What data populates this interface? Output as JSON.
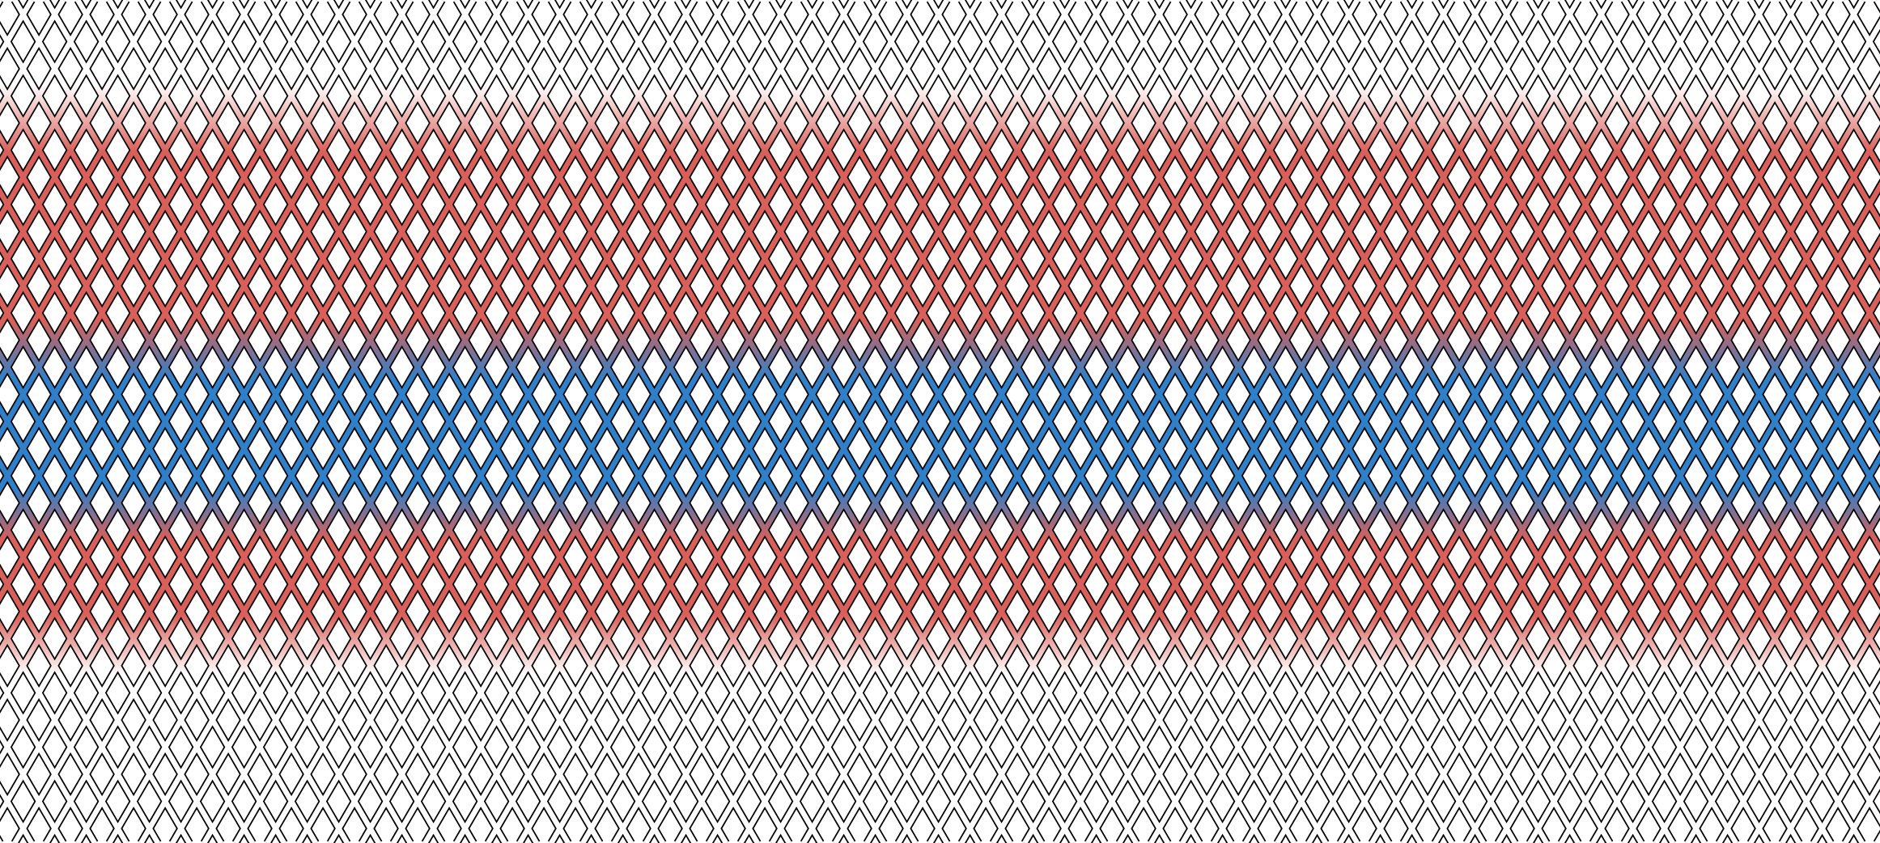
{
  "pattern": {
    "kind": "diamond-lattice",
    "outline_color": "#000000",
    "gradient_stops": [
      {
        "offset": 0.0,
        "color": "#ffffff"
      },
      {
        "offset": 0.1,
        "color": "#ffffff"
      },
      {
        "offset": 0.18,
        "color": "#d9605a"
      },
      {
        "offset": 0.38,
        "color": "#d9605a"
      },
      {
        "offset": 0.45,
        "color": "#2f80c8"
      },
      {
        "offset": 0.58,
        "color": "#2f80c8"
      },
      {
        "offset": 0.64,
        "color": "#d9605a"
      },
      {
        "offset": 0.73,
        "color": "#d9605a"
      },
      {
        "offset": 0.8,
        "color": "#ffffff"
      },
      {
        "offset": 1.0,
        "color": "#ffffff"
      }
    ],
    "colors": {
      "red": "#d9605a",
      "blue": "#2f80c8",
      "white": "#ffffff"
    }
  }
}
